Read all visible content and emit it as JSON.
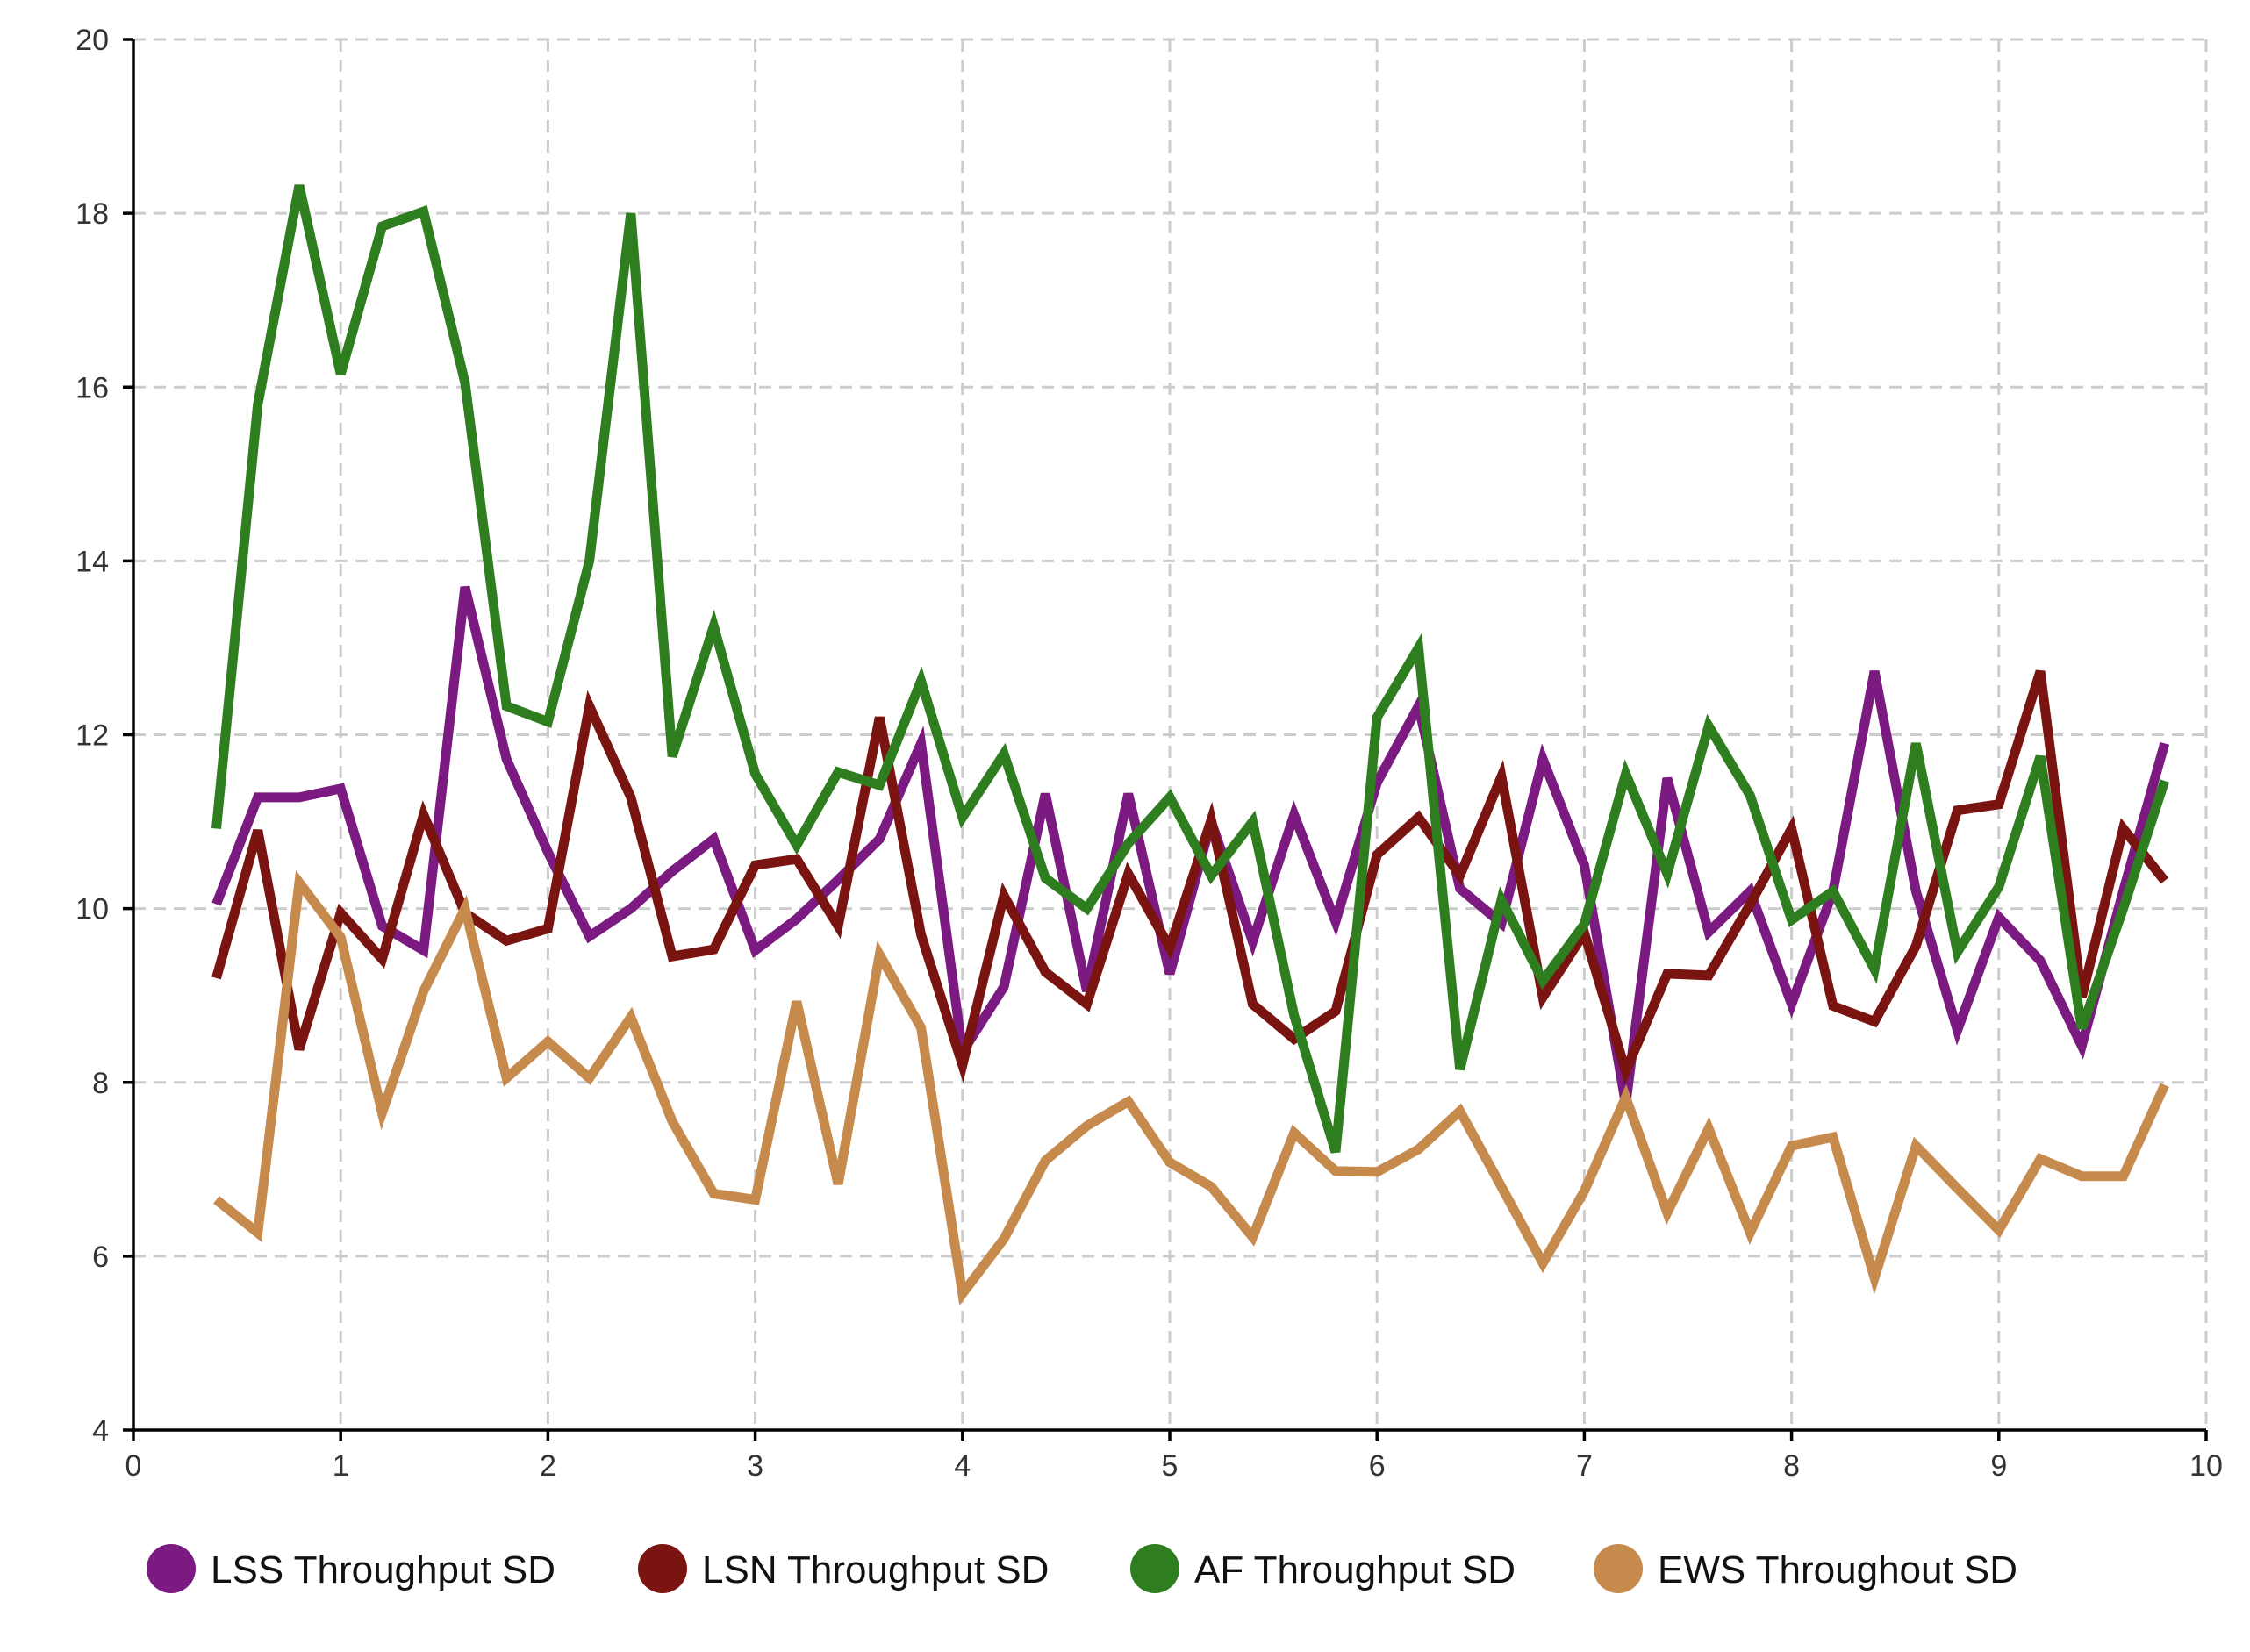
{
  "chart_data": {
    "type": "line",
    "title": "",
    "xlabel": "",
    "ylabel": "",
    "xlim": [
      0,
      10
    ],
    "ylim": [
      4,
      20
    ],
    "x_ticks": [
      "0",
      "1",
      "2",
      "3",
      "4",
      "5",
      "6",
      "7",
      "8",
      "9",
      "10"
    ],
    "y_ticks": [
      "4",
      "6",
      "8",
      "10",
      "12",
      "14",
      "16",
      "18",
      "20"
    ],
    "grid": true,
    "legend_position": "bottom",
    "x": [
      0.4,
      0.6,
      0.8,
      1.0,
      1.2,
      1.4,
      1.6,
      1.8,
      2.0,
      2.2,
      2.4,
      2.6,
      2.8,
      3.0,
      3.2,
      3.4,
      3.6,
      3.8,
      4.0,
      4.2,
      4.4,
      4.6,
      4.8,
      5.0,
      5.2,
      5.4,
      5.6,
      5.8,
      6.0,
      6.2,
      6.4,
      6.6,
      6.8,
      7.0,
      7.2,
      7.4,
      7.6,
      7.8,
      8.0,
      8.2,
      8.4,
      8.6,
      8.8,
      9.0,
      9.2,
      9.4,
      9.6,
      9.8
    ],
    "series": [
      {
        "name": "LSS Throughput SD",
        "color": "#7b1a80",
        "values": [
          10.05,
          11.28,
          11.28,
          11.38,
          9.8,
          9.52,
          13.7,
          11.72,
          10.65,
          9.68,
          10.0,
          10.43,
          10.8,
          9.52,
          9.88,
          10.33,
          10.8,
          11.9,
          8.35,
          9.1,
          11.32,
          9.05,
          11.32,
          9.25,
          11.0,
          9.62,
          11.08,
          9.85,
          11.45,
          12.33,
          10.23,
          9.83,
          11.72,
          10.5,
          7.75,
          11.5,
          9.73,
          10.2,
          8.9,
          10.2,
          12.73,
          10.2,
          8.6,
          9.9,
          9.4,
          8.42,
          10.2,
          11.9
        ]
      },
      {
        "name": "LSN Throughput SD",
        "color": "#7a1410",
        "values": [
          9.2,
          10.9,
          8.38,
          9.95,
          9.42,
          11.08,
          9.95,
          9.63,
          9.77,
          12.33,
          11.28,
          9.45,
          9.53,
          10.5,
          10.57,
          9.8,
          12.2,
          9.7,
          8.2,
          10.15,
          9.27,
          8.9,
          10.4,
          9.55,
          11.02,
          8.9,
          8.5,
          8.82,
          10.62,
          11.05,
          10.38,
          11.52,
          8.98,
          9.72,
          8.13,
          9.25,
          9.23,
          10.05,
          10.92,
          8.88,
          8.7,
          9.57,
          11.13,
          11.2,
          12.73,
          8.98,
          10.92,
          10.32
        ]
      },
      {
        "name": "AF Throughput SD",
        "color": "#2e7d1e",
        "values": [
          10.92,
          15.8,
          18.32,
          16.15,
          17.85,
          18.02,
          16.05,
          12.33,
          12.15,
          14.0,
          18.0,
          11.75,
          13.25,
          11.55,
          10.73,
          11.57,
          11.42,
          12.62,
          11.05,
          11.78,
          10.35,
          10.0,
          10.75,
          11.28,
          10.38,
          11.0,
          8.77,
          7.2,
          12.2,
          13.0,
          8.15,
          10.1,
          9.17,
          9.82,
          11.55,
          10.4,
          12.1,
          11.3,
          9.87,
          10.2,
          9.3,
          11.9,
          9.5,
          10.25,
          11.75,
          8.62,
          10.0,
          11.47
        ]
      },
      {
        "name": "EWS Throughout SD",
        "color": "#c78a4d",
        "values": [
          6.65,
          6.27,
          10.3,
          9.67,
          7.65,
          9.05,
          10.0,
          8.05,
          8.47,
          8.05,
          8.75,
          7.55,
          6.72,
          6.65,
          8.93,
          6.83,
          9.47,
          8.63,
          5.57,
          6.2,
          7.1,
          7.5,
          7.78,
          7.08,
          6.8,
          6.22,
          7.42,
          6.98,
          6.97,
          7.23,
          7.67,
          6.8,
          5.92,
          6.75,
          7.83,
          6.5,
          7.47,
          6.27,
          7.27,
          7.37,
          5.75,
          7.27,
          6.78,
          6.3,
          7.12,
          6.92,
          6.92,
          7.97
        ]
      }
    ]
  }
}
